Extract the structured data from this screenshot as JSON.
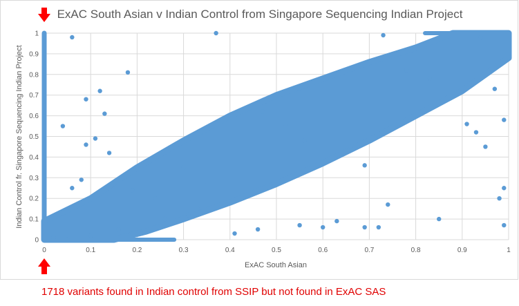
{
  "chart_data": {
    "type": "scatter",
    "title": "ExAC South Asian v Indian Control from Singapore Sequencing Indian Project",
    "xlabel": "ExAC South Asian",
    "ylabel": "Indian Control fr. Singapore Sequencing Indian Project",
    "xlim": [
      0,
      1
    ],
    "ylim": [
      0,
      1
    ],
    "x_ticks": [
      "0",
      "0.1",
      "0.2",
      "0.3",
      "0.4",
      "0.5",
      "0.6",
      "0.7",
      "0.8",
      "0.9",
      "1"
    ],
    "y_ticks": [
      "0",
      "0.1",
      "0.2",
      "0.3",
      "0.4",
      "0.5",
      "0.6",
      "0.7",
      "0.8",
      "0.9",
      "1"
    ],
    "grid": true,
    "legend": "none",
    "point_color": "#5b9bd5",
    "series": [
      {
        "description_points": "dense band around the diagonal y≈x plus scattered outliers and a vertical column at x=0",
        "points": [
          [
            0.37,
            1.0
          ],
          [
            0.73,
            0.99
          ],
          [
            0.06,
            0.98
          ],
          [
            0.18,
            0.81
          ],
          [
            0.12,
            0.72
          ],
          [
            0.09,
            0.68
          ],
          [
            0.13,
            0.61
          ],
          [
            0.11,
            0.49
          ],
          [
            0.04,
            0.55
          ],
          [
            0.09,
            0.46
          ],
          [
            0.14,
            0.42
          ],
          [
            0.06,
            0.25
          ],
          [
            0.08,
            0.29
          ],
          [
            0.33,
            0.15
          ],
          [
            0.31,
            0.12
          ],
          [
            0.26,
            0.1
          ],
          [
            0.41,
            0.03
          ],
          [
            0.46,
            0.05
          ],
          [
            0.55,
            0.07
          ],
          [
            0.6,
            0.06
          ],
          [
            0.63,
            0.09
          ],
          [
            0.69,
            0.06
          ],
          [
            0.85,
            0.1
          ],
          [
            0.74,
            0.17
          ],
          [
            0.72,
            0.06
          ],
          [
            0.99,
            0.07
          ],
          [
            0.98,
            0.2
          ],
          [
            0.99,
            0.25
          ],
          [
            0.99,
            0.58
          ],
          [
            0.97,
            0.73
          ],
          [
            0.91,
            0.56
          ],
          [
            0.93,
            0.52
          ],
          [
            0.95,
            0.45
          ],
          [
            0.02,
            0.01
          ],
          [
            0.05,
            0.0
          ],
          [
            0.1,
            0.02
          ],
          [
            0.16,
            0.05
          ],
          [
            0.21,
            0.03
          ],
          [
            0.47,
            0.62
          ],
          [
            0.52,
            0.55
          ],
          [
            0.56,
            0.48
          ],
          [
            0.66,
            0.45
          ],
          [
            0.69,
            0.36
          ],
          [
            0.78,
            0.82
          ],
          [
            0.83,
            0.78
          ],
          [
            0.88,
            0.93
          ],
          [
            0.94,
            0.98
          ],
          [
            0.3,
            0.35
          ],
          [
            0.35,
            0.28
          ],
          [
            0.24,
            0.2
          ],
          [
            0.19,
            0.24
          ]
        ]
      }
    ]
  },
  "annotations": {
    "top_arrow": "down-arrow-icon",
    "bottom_arrow": "up-arrow-icon",
    "arrow_color": "#ff0000"
  },
  "caption": "1718 variants found in Indian control from SSIP but not found in ExAC SAS"
}
